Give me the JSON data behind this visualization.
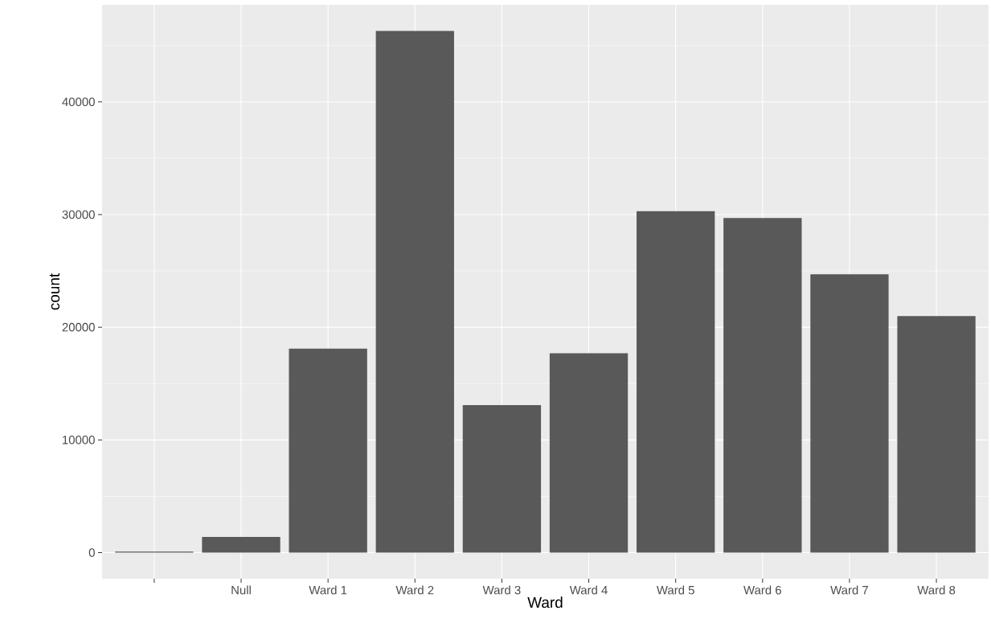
{
  "chart_data": {
    "type": "bar",
    "xlabel": "Ward",
    "ylabel": "count",
    "categories": [
      null,
      "Null",
      "Ward 1",
      "Ward 2",
      "Ward 3",
      "Ward 4",
      "Ward 5",
      "Ward 6",
      "Ward 7",
      "Ward 8"
    ],
    "values": [
      100,
      1400,
      18100,
      46300,
      13100,
      17700,
      30300,
      29700,
      24700,
      21000
    ],
    "color": "#595959",
    "ylim": [
      -2315,
      48615
    ],
    "yticks": [
      0,
      10000,
      20000,
      30000,
      40000
    ],
    "grid": true
  }
}
